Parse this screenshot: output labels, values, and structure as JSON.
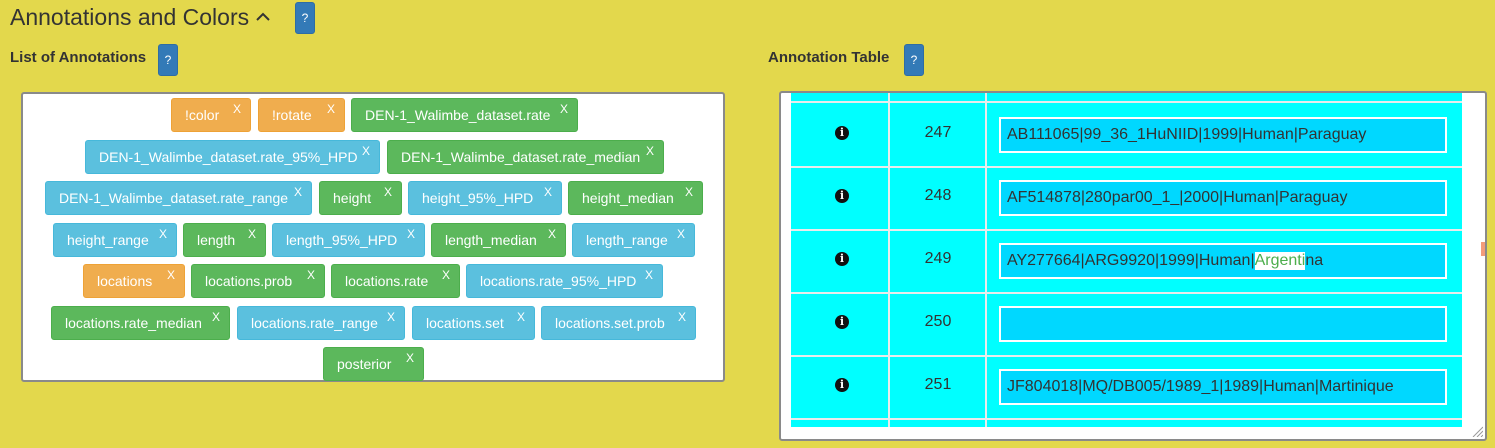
{
  "header": {
    "title": "Annotations and Colors",
    "help_label": "?"
  },
  "list_panel": {
    "heading": "List of Annotations",
    "help_label": "?"
  },
  "table_panel": {
    "heading": "Annotation Table",
    "help_label": "?"
  },
  "annotations": [
    {
      "label": "!color",
      "color": "orange",
      "remove": "X"
    },
    {
      "label": "!rotate",
      "color": "orange",
      "remove": "X"
    },
    {
      "label": "DEN-1_Walimbe_dataset.rate",
      "color": "green",
      "remove": "X"
    },
    {
      "label": "DEN-1_Walimbe_dataset.rate_95%_HPD",
      "color": "blue",
      "remove": "X"
    },
    {
      "label": "DEN-1_Walimbe_dataset.rate_median",
      "color": "green",
      "remove": "X"
    },
    {
      "label": "DEN-1_Walimbe_dataset.rate_range",
      "color": "blue",
      "remove": "X"
    },
    {
      "label": "height",
      "color": "green",
      "remove": "X"
    },
    {
      "label": "height_95%_HPD",
      "color": "blue",
      "remove": "X"
    },
    {
      "label": "height_median",
      "color": "green",
      "remove": "X"
    },
    {
      "label": "height_range",
      "color": "blue",
      "remove": "X"
    },
    {
      "label": "length",
      "color": "green",
      "remove": "X"
    },
    {
      "label": "length_95%_HPD",
      "color": "blue",
      "remove": "X"
    },
    {
      "label": "length_median",
      "color": "green",
      "remove": "X"
    },
    {
      "label": "length_range",
      "color": "blue",
      "remove": "X"
    },
    {
      "label": "locations",
      "color": "orange",
      "remove": "X"
    },
    {
      "label": "locations.prob",
      "color": "green",
      "remove": "X"
    },
    {
      "label": "locations.rate",
      "color": "green",
      "remove": "X"
    },
    {
      "label": "locations.rate_95%_HPD",
      "color": "blue",
      "remove": "X"
    },
    {
      "label": "locations.rate_median",
      "color": "green",
      "remove": "X"
    },
    {
      "label": "locations.rate_range",
      "color": "blue",
      "remove": "X"
    },
    {
      "label": "locations.set",
      "color": "blue",
      "remove": "X"
    },
    {
      "label": "locations.set.prob",
      "color": "blue",
      "remove": "X"
    },
    {
      "label": "posterior",
      "color": "green",
      "remove": "X"
    }
  ],
  "table_rows": [
    {
      "icon": "info-circle-icon",
      "num": "247",
      "value": "AB111065|99_36_1HuNIID|1999|Human|Paraguay"
    },
    {
      "icon": "info-circle-icon",
      "num": "248",
      "value": "AF514878|280par00_1_|2000|Human|Paraguay"
    },
    {
      "icon": "info-circle-icon",
      "num": "249",
      "value_before": "AY277664|ARG9920|1999|Human|",
      "value_highlight": "Argenti",
      "value_after": "na"
    },
    {
      "icon": "info-circle-icon",
      "num": "250",
      "value": ""
    },
    {
      "icon": "info-circle-icon",
      "num": "251",
      "value": "JF804018|MQ/DB005/1989_1|1989|Human|Martinique"
    }
  ],
  "colors": {
    "background": "#e3d84c",
    "orange": "#f0ad4e",
    "green": "#5cb85c",
    "blue": "#5bc0de",
    "table_bg": "#00ffff",
    "cell_bg": "#00d8ff",
    "help_button": "#337ab7"
  }
}
